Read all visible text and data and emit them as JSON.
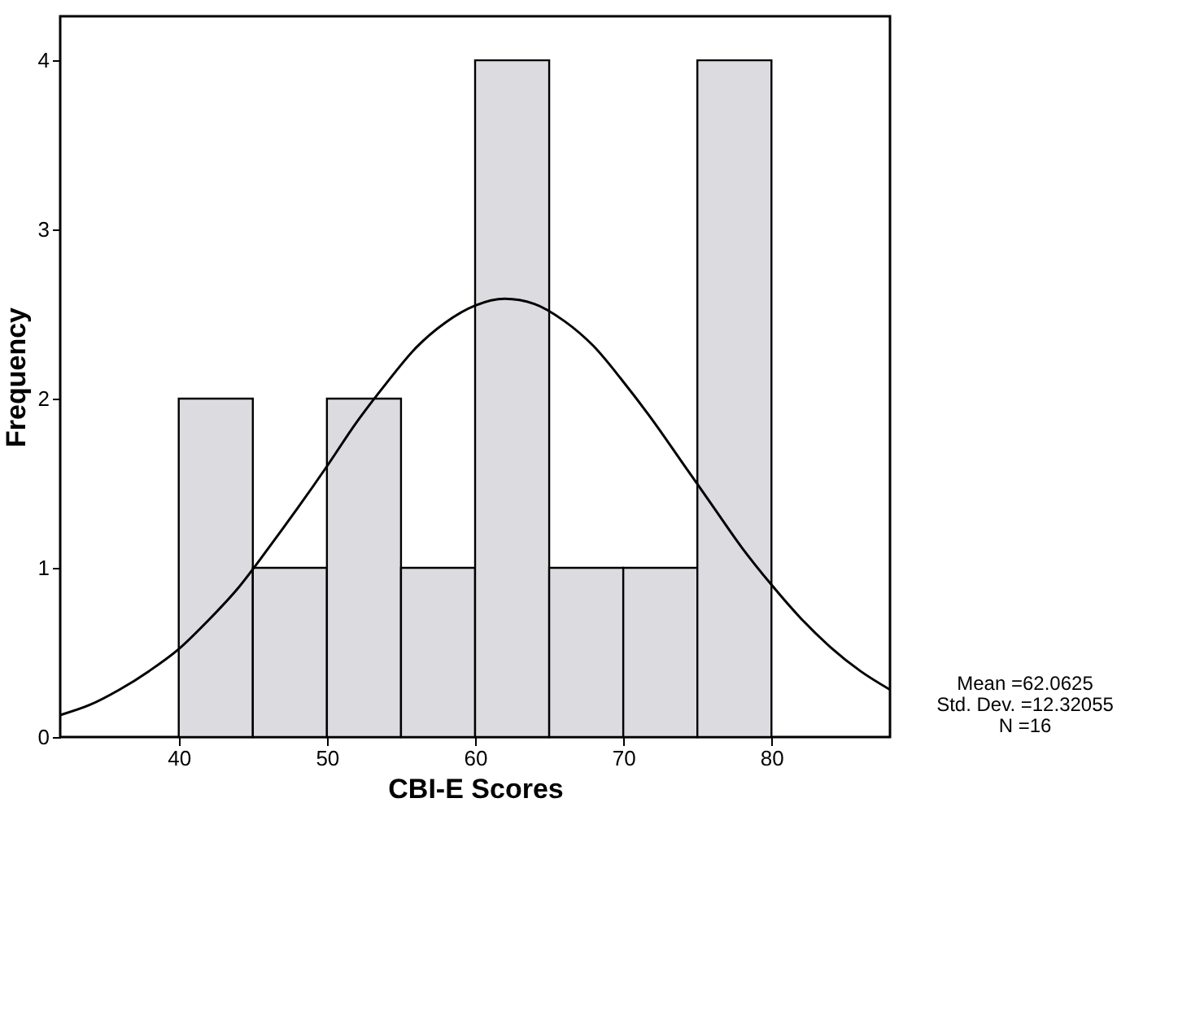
{
  "chart_data": {
    "type": "histogram",
    "xlabel": "CBI-E Scores",
    "ylabel": "Frequency",
    "bins": [
      40,
      45,
      50,
      55,
      60,
      65,
      70,
      75,
      80
    ],
    "values": [
      2,
      1,
      2,
      1,
      4,
      1,
      1,
      4
    ],
    "color": "#dcdce0",
    "series": [
      {
        "type": "line",
        "color": "#000000",
        "x": [
          32,
          34,
          36,
          38,
          40,
          42,
          44,
          46,
          48,
          50,
          52,
          54,
          56,
          58,
          60,
          62,
          64,
          66,
          68,
          70,
          72,
          74,
          76,
          78,
          80,
          82,
          84,
          86,
          88
        ],
        "values": [
          0.13,
          0.19,
          0.28,
          0.39,
          0.52,
          0.69,
          0.88,
          1.11,
          1.35,
          1.6,
          1.86,
          2.09,
          2.3,
          2.45,
          2.55,
          2.59,
          2.56,
          2.46,
          2.31,
          2.1,
          1.87,
          1.62,
          1.37,
          1.12,
          0.9,
          0.7,
          0.53,
          0.39,
          0.28
        ]
      }
    ],
    "xlim": [
      32,
      88
    ],
    "ylim": [
      0,
      4.26
    ],
    "xticks": [
      40,
      50,
      60,
      70,
      80
    ],
    "yticks": [
      0,
      1,
      2,
      3,
      4
    ],
    "grid": false,
    "marker": "none",
    "line_style": "solid",
    "annotations": [
      "Mean =62.0625",
      "Std. Dev. =12.32055",
      "N =16"
    ]
  }
}
